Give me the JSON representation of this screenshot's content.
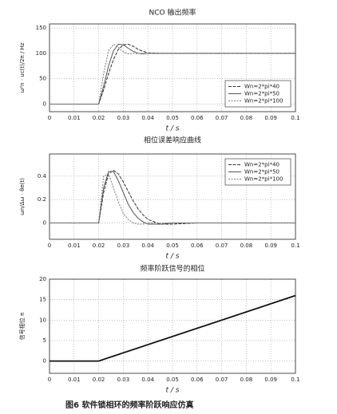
{
  "chart_data": [
    {
      "type": "line",
      "title": "NCO 输出频率",
      "xlabel": "t / s",
      "ylabel": "ω²n · uc(t)/2π / Hz",
      "x": [
        0,
        0.02,
        0.022,
        0.024,
        0.026,
        0.028,
        0.03,
        0.032,
        0.034,
        0.036,
        0.038,
        0.04,
        0.045,
        0.05,
        0.06,
        0.07,
        0.08,
        0.09,
        0.1
      ],
      "xlim": [
        0,
        0.1
      ],
      "xticks": [
        0,
        0.01,
        0.02,
        0.03,
        0.04,
        0.05,
        0.06,
        0.07,
        0.08,
        0.09,
        0.1
      ],
      "ylim": [
        -15,
        158
      ],
      "yticks": [
        0,
        50,
        100,
        150
      ],
      "grid": true,
      "legend": "lower right",
      "series": [
        {
          "name": "Wn=2*pi*40",
          "color": "#333333",
          "values": [
            0,
            0,
            28,
            60,
            88,
            108,
            117,
            118,
            114,
            108,
            104,
            101,
            100,
            100,
            100,
            100,
            100,
            100,
            100
          ]
        },
        {
          "name": "Wn=2*pi*50",
          "color": "#555555",
          "values": [
            0,
            0,
            35,
            75,
            105,
            118,
            117,
            110,
            104,
            100,
            99,
            100,
            100,
            100,
            100,
            100,
            100,
            100,
            100
          ]
        },
        {
          "name": "Wn=2*pi*100",
          "color": "#777777",
          "values": [
            0,
            0,
            60,
            105,
            118,
            112,
            103,
            99,
            100,
            100,
            100,
            100,
            100,
            100,
            100,
            100,
            100,
            100,
            100
          ]
        }
      ]
    },
    {
      "type": "line",
      "title": "相位误差响应曲线",
      "xlabel": "t / s",
      "ylabel": "ωn/Δω · θe(t)",
      "x": [
        0,
        0.02,
        0.022,
        0.024,
        0.026,
        0.028,
        0.03,
        0.032,
        0.034,
        0.036,
        0.038,
        0.04,
        0.045,
        0.05,
        0.06,
        0.07,
        0.08,
        0.09,
        0.1
      ],
      "xlim": [
        0,
        0.1
      ],
      "xticks": [
        0,
        0.01,
        0.02,
        0.03,
        0.04,
        0.05,
        0.06,
        0.07,
        0.08,
        0.09,
        0.1
      ],
      "ylim": [
        -0.14,
        0.59
      ],
      "yticks": [
        0,
        0.2,
        0.4
      ],
      "grid": true,
      "legend": "upper right",
      "series": [
        {
          "name": "Wn=2*pi*40",
          "color": "#333333",
          "values": [
            0,
            0,
            0.26,
            0.42,
            0.45,
            0.42,
            0.35,
            0.27,
            0.19,
            0.12,
            0.07,
            0.03,
            -0.01,
            -0.01,
            0,
            0,
            0,
            0,
            0
          ]
        },
        {
          "name": "Wn=2*pi*50",
          "color": "#555555",
          "values": [
            0,
            0,
            0.3,
            0.44,
            0.44,
            0.36,
            0.26,
            0.16,
            0.09,
            0.04,
            0.01,
            -0.01,
            -0.01,
            0,
            0,
            0,
            0,
            0,
            0
          ]
        },
        {
          "name": "Wn=2*pi*100",
          "color": "#777777",
          "values": [
            0,
            0,
            0.4,
            0.42,
            0.3,
            0.18,
            0.08,
            0.03,
            0,
            -0.01,
            -0.01,
            0,
            0,
            0,
            0,
            0,
            0,
            0,
            0
          ]
        }
      ]
    },
    {
      "type": "line",
      "title": "频率阶跃信号的相位",
      "xlabel": "t / s",
      "ylabel": "信号相位 π",
      "x": [
        0,
        0.02,
        0.1
      ],
      "xlim": [
        0,
        0.1
      ],
      "xticks": [
        0,
        0.01,
        0.02,
        0.03,
        0.04,
        0.05,
        0.06,
        0.07,
        0.08,
        0.09,
        0.1
      ],
      "ylim": [
        -3,
        20
      ],
      "yticks": [
        0,
        5,
        10,
        15,
        20
      ],
      "grid": true,
      "series": [
        {
          "color": "#111111",
          "values": [
            0,
            0,
            16
          ]
        }
      ]
    }
  ],
  "caption": "图6  软件锁相环的频率阶跃响应仿真"
}
